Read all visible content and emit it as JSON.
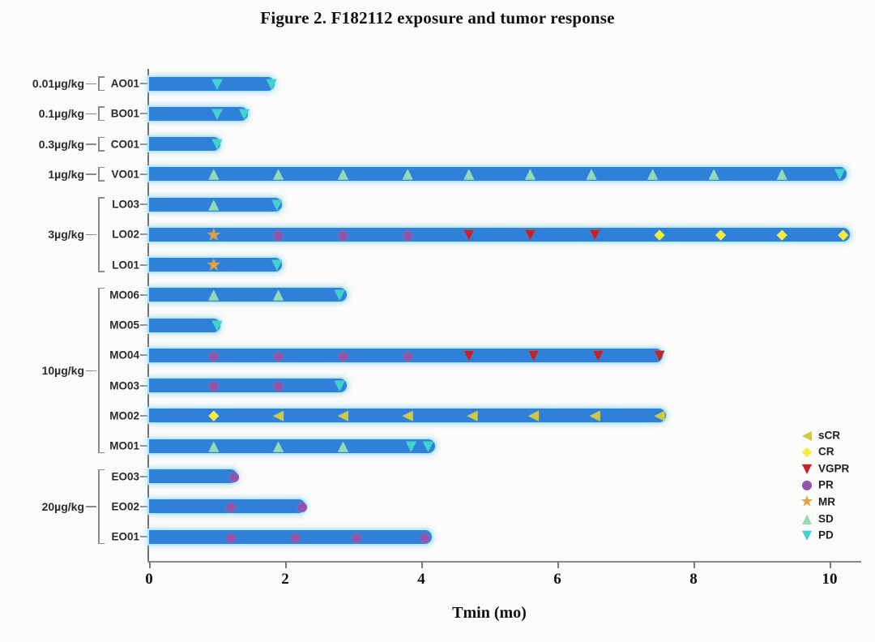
{
  "title": "Figure 2. F182112 exposure and tumor response",
  "chart_data": {
    "type": "bar",
    "subtype": "swimmer-plot",
    "title": "Figure 2. F182112 exposure and tumor response",
    "xlabel": "Tmin (mo)",
    "x_ticks": [
      0,
      2,
      4,
      6,
      8,
      10
    ],
    "xlim": [
      0,
      10.5
    ],
    "grid": false,
    "legend_position": "right-bottom",
    "bar_color": "#2e80d8",
    "bar_halo_color": "#b9e7f6",
    "markers": {
      "sCR": {
        "glyph": "◀",
        "color": "#d2c83f",
        "label": "sCR"
      },
      "CR": {
        "glyph": "◆",
        "color": "#f3eb3d",
        "label": "CR"
      },
      "VGPR": {
        "glyph": "▼",
        "color": "#c22428",
        "label": "VGPR"
      },
      "PR": {
        "glyph": "●",
        "color": "#9156ac",
        "label": "PR"
      },
      "MR": {
        "glyph": "★",
        "color": "#e3a33c",
        "label": "MR"
      },
      "SD": {
        "glyph": "▲",
        "color": "#92dcb4",
        "label": "SD"
      },
      "PD": {
        "glyph": "▼",
        "color": "#41d1cf",
        "label": "PD"
      }
    },
    "legend_order": [
      "sCR",
      "CR",
      "VGPR",
      "PR",
      "MR",
      "SD",
      "PD"
    ],
    "groups": [
      {
        "dose": "0.01µg/kg",
        "patients": [
          "AO01"
        ]
      },
      {
        "dose": "0.1µg/kg",
        "patients": [
          "BO01"
        ]
      },
      {
        "dose": "0.3µg/kg",
        "patients": [
          "CO01"
        ]
      },
      {
        "dose": "1µg/kg",
        "patients": [
          "VO01"
        ]
      },
      {
        "dose": "3µg/kg",
        "patients": [
          "LO03",
          "LO02",
          "LO01"
        ]
      },
      {
        "dose": "10µg/kg",
        "patients": [
          "MO06",
          "MO05",
          "MO04",
          "MO03",
          "MO02",
          "MO01"
        ]
      },
      {
        "dose": "20µg/kg",
        "patients": [
          "EO03",
          "EO02",
          "EO01"
        ]
      }
    ],
    "rows": [
      {
        "patient": "AO01",
        "dose": "0.01µg/kg",
        "bar_end": 1.85,
        "events": [
          {
            "type": "PD",
            "t": 1.0
          },
          {
            "type": "PD",
            "t": 1.8
          }
        ]
      },
      {
        "patient": "BO01",
        "dose": "0.1µg/kg",
        "bar_end": 1.45,
        "events": [
          {
            "type": "PD",
            "t": 1.0
          },
          {
            "type": "PD",
            "t": 1.4
          }
        ]
      },
      {
        "patient": "CO01",
        "dose": "0.3µg/kg",
        "bar_end": 1.05,
        "events": [
          {
            "type": "PD",
            "t": 1.0
          }
        ]
      },
      {
        "patient": "VO01",
        "dose": "1µg/kg",
        "bar_end": 10.25,
        "events": [
          {
            "type": "SD",
            "t": 0.95
          },
          {
            "type": "SD",
            "t": 1.9
          },
          {
            "type": "SD",
            "t": 2.85
          },
          {
            "type": "SD",
            "t": 3.8
          },
          {
            "type": "SD",
            "t": 4.7
          },
          {
            "type": "SD",
            "t": 5.6
          },
          {
            "type": "SD",
            "t": 6.5
          },
          {
            "type": "SD",
            "t": 7.4
          },
          {
            "type": "SD",
            "t": 8.3
          },
          {
            "type": "SD",
            "t": 9.3
          },
          {
            "type": "PD",
            "t": 10.15
          }
        ]
      },
      {
        "patient": "LO03",
        "dose": "3µg/kg",
        "bar_end": 1.95,
        "events": [
          {
            "type": "SD",
            "t": 0.95
          },
          {
            "type": "PD",
            "t": 1.88
          }
        ]
      },
      {
        "patient": "LO02",
        "dose": "3µg/kg",
        "bar_end": 10.3,
        "events": [
          {
            "type": "MR",
            "t": 0.95
          },
          {
            "type": "PR",
            "t": 1.9
          },
          {
            "type": "PR",
            "t": 2.85
          },
          {
            "type": "PR",
            "t": 3.8
          },
          {
            "type": "VGPR",
            "t": 4.7
          },
          {
            "type": "VGPR",
            "t": 5.6
          },
          {
            "type": "VGPR",
            "t": 6.55
          },
          {
            "type": "CR",
            "t": 7.5
          },
          {
            "type": "CR",
            "t": 8.4
          },
          {
            "type": "CR",
            "t": 9.3
          },
          {
            "type": "CR",
            "t": 10.2
          }
        ]
      },
      {
        "patient": "LO01",
        "dose": "3µg/kg",
        "bar_end": 1.95,
        "events": [
          {
            "type": "MR",
            "t": 0.95
          },
          {
            "type": "PD",
            "t": 1.88
          }
        ]
      },
      {
        "patient": "MO06",
        "dose": "10µg/kg",
        "bar_end": 2.9,
        "events": [
          {
            "type": "SD",
            "t": 0.95
          },
          {
            "type": "SD",
            "t": 1.9
          },
          {
            "type": "PD",
            "t": 2.8
          }
        ]
      },
      {
        "patient": "MO05",
        "dose": "10µg/kg",
        "bar_end": 1.05,
        "events": [
          {
            "type": "PD",
            "t": 1.0
          }
        ]
      },
      {
        "patient": "MO04",
        "dose": "10µg/kg",
        "bar_end": 7.55,
        "events": [
          {
            "type": "PR",
            "t": 0.95
          },
          {
            "type": "PR",
            "t": 1.9
          },
          {
            "type": "PR",
            "t": 2.85
          },
          {
            "type": "PR",
            "t": 3.8
          },
          {
            "type": "VGPR",
            "t": 4.7
          },
          {
            "type": "VGPR",
            "t": 5.65
          },
          {
            "type": "VGPR",
            "t": 6.6
          },
          {
            "type": "VGPR",
            "t": 7.5
          }
        ]
      },
      {
        "patient": "MO03",
        "dose": "10µg/kg",
        "bar_end": 2.9,
        "events": [
          {
            "type": "PR",
            "t": 0.95
          },
          {
            "type": "PR",
            "t": 1.9
          },
          {
            "type": "PD",
            "t": 2.8
          }
        ]
      },
      {
        "patient": "MO02",
        "dose": "10µg/kg",
        "bar_end": 7.6,
        "events": [
          {
            "type": "CR",
            "t": 0.95
          },
          {
            "type": "sCR",
            "t": 1.9
          },
          {
            "type": "sCR",
            "t": 2.85
          },
          {
            "type": "sCR",
            "t": 3.8
          },
          {
            "type": "sCR",
            "t": 4.75
          },
          {
            "type": "sCR",
            "t": 5.65
          },
          {
            "type": "sCR",
            "t": 6.55
          },
          {
            "type": "sCR",
            "t": 7.5
          }
        ]
      },
      {
        "patient": "MO01",
        "dose": "10µg/kg",
        "bar_end": 4.2,
        "events": [
          {
            "type": "SD",
            "t": 0.95
          },
          {
            "type": "SD",
            "t": 1.9
          },
          {
            "type": "SD",
            "t": 2.85
          },
          {
            "type": "PD",
            "t": 3.85
          },
          {
            "type": "PD",
            "t": 4.1
          }
        ]
      },
      {
        "patient": "EO03",
        "dose": "20µg/kg",
        "bar_end": 1.3,
        "events": [
          {
            "type": "PR",
            "t": 1.25
          }
        ]
      },
      {
        "patient": "EO02",
        "dose": "20µg/kg",
        "bar_end": 2.3,
        "events": [
          {
            "type": "PR",
            "t": 1.2
          },
          {
            "type": "PR",
            "t": 2.25
          }
        ]
      },
      {
        "patient": "EO01",
        "dose": "20µg/kg",
        "bar_end": 4.15,
        "events": [
          {
            "type": "PR",
            "t": 1.2
          },
          {
            "type": "PR",
            "t": 2.15
          },
          {
            "type": "PR",
            "t": 3.05
          },
          {
            "type": "PR",
            "t": 4.05
          }
        ]
      }
    ]
  }
}
